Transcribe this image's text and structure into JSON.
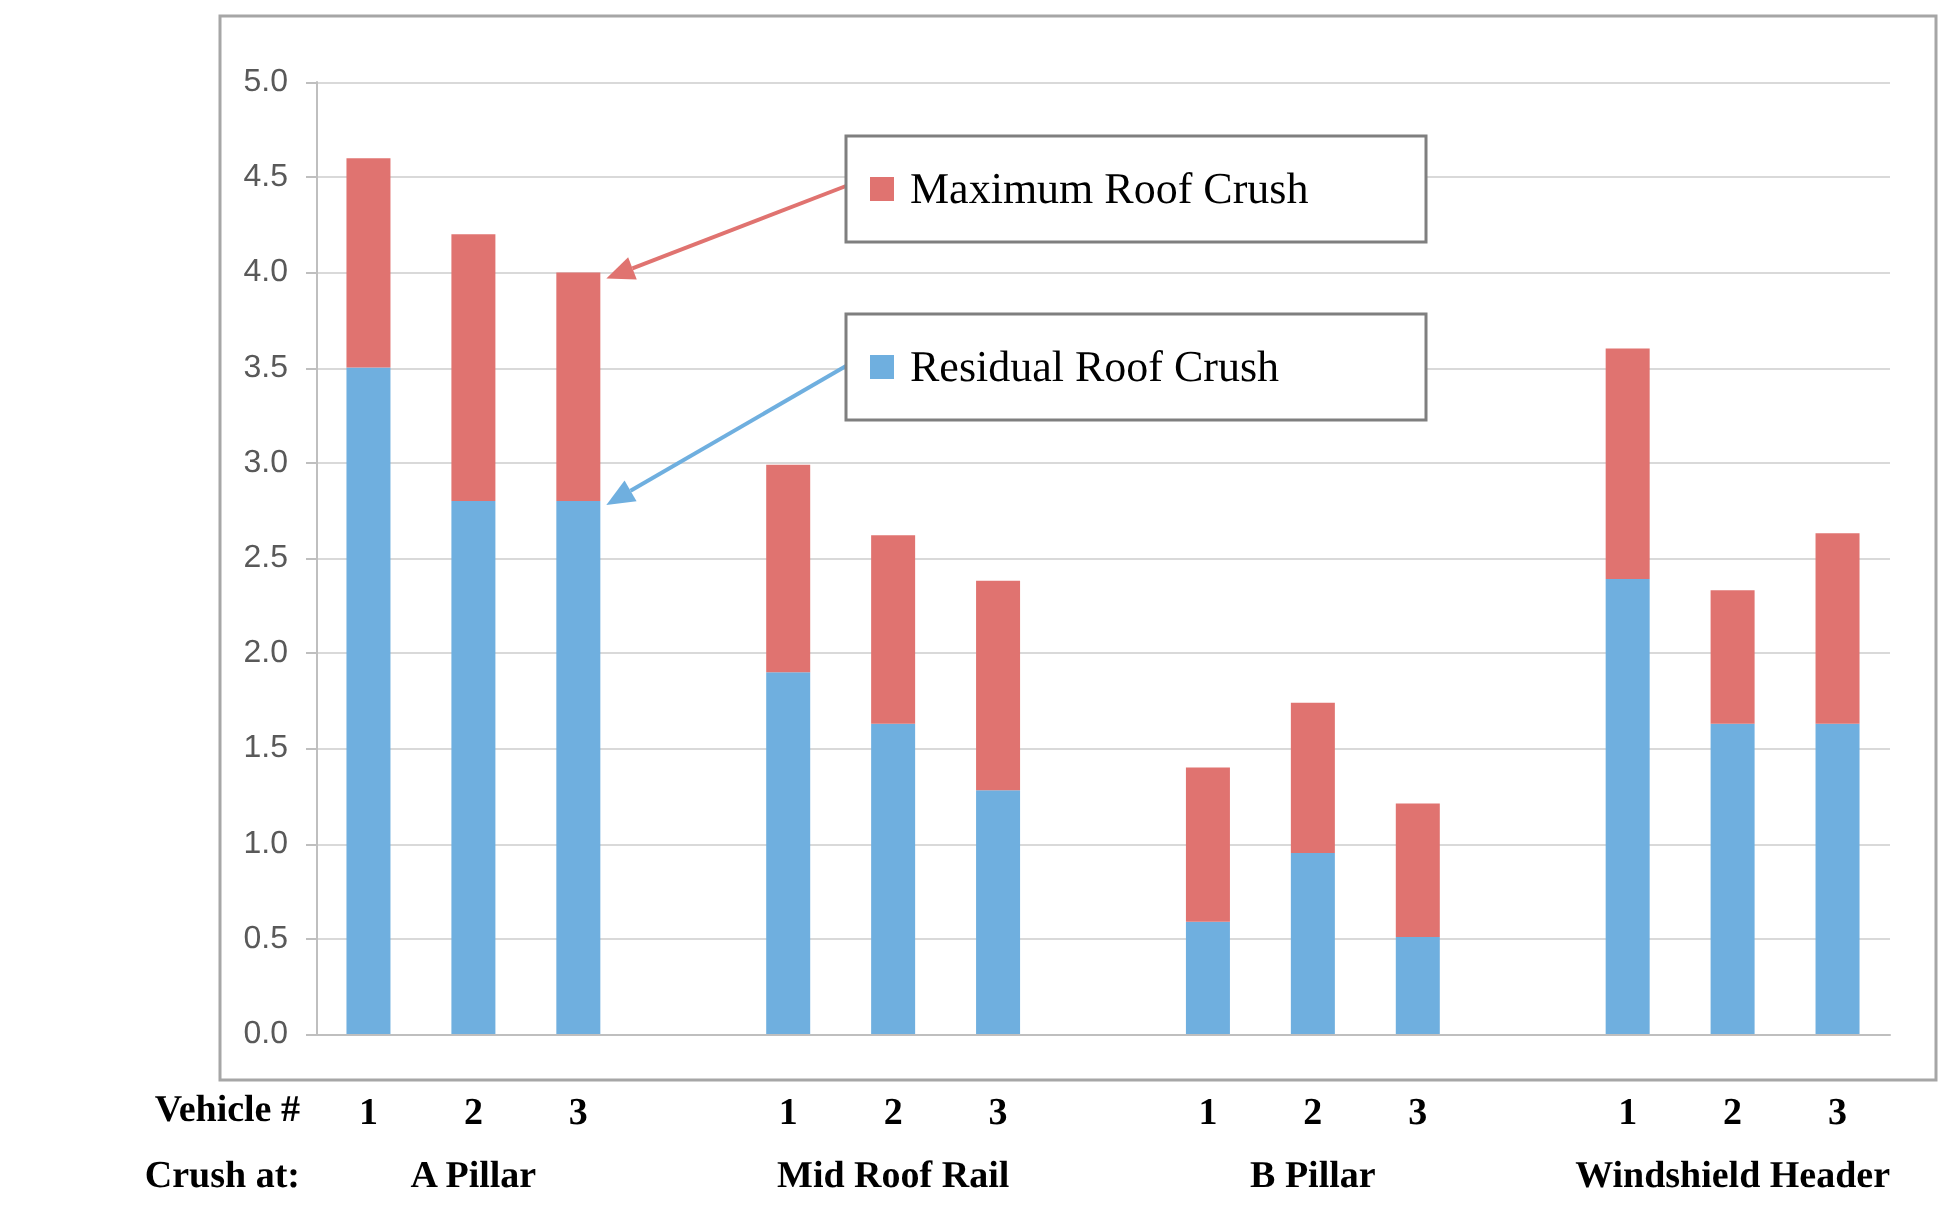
{
  "chart_data": {
    "type": "bar",
    "stacked": true,
    "categories": [
      "1",
      "2",
      "3",
      null,
      "1",
      "2",
      "3",
      null,
      "1",
      "2",
      "3",
      null,
      "1",
      "2",
      "3"
    ],
    "series": [
      {
        "name": "Residual Roof Crush",
        "color": "#6fafdf",
        "values": [
          3.5,
          2.8,
          2.8,
          null,
          1.9,
          1.63,
          1.28,
          null,
          0.59,
          0.95,
          0.51,
          null,
          2.39,
          1.63,
          1.63
        ]
      },
      {
        "name": "Maximum Roof Crush",
        "color": "#e07370",
        "values": [
          1.1,
          1.4,
          1.2,
          null,
          1.09,
          0.99,
          1.1,
          null,
          0.81,
          0.79,
          0.7,
          null,
          1.21,
          0.7,
          1.0
        ]
      }
    ],
    "ylim": [
      0,
      5
    ],
    "yticks": [
      {
        "value": 0,
        "label": "0.0"
      },
      {
        "value": 0.5,
        "label": "0.5"
      },
      {
        "value": 1,
        "label": "1.0"
      },
      {
        "value": 1.5,
        "label": "1.5"
      },
      {
        "value": 2,
        "label": "2.0"
      },
      {
        "value": 2.5,
        "label": "2.5"
      },
      {
        "value": 3,
        "label": "3.0"
      },
      {
        "value": 3.5,
        "label": "3.5"
      },
      {
        "value": 4,
        "label": "4.0"
      },
      {
        "value": 4.5,
        "label": "4.5"
      },
      {
        "value": 5,
        "label": "5.0"
      }
    ],
    "grid": "y",
    "legend": "top",
    "annotations": [
      "Vehicle #",
      "Crush at:",
      "A Pillar",
      "Mid Roof Rail",
      "B Pillar",
      "Windshield Header"
    ]
  }
}
